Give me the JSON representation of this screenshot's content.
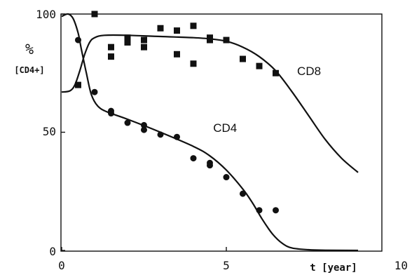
{
  "chart_data": {
    "type": "scatter",
    "xlim": [
      0,
      10
    ],
    "ylim": [
      0,
      100
    ],
    "x_ticks": [
      "0",
      "5",
      "10"
    ],
    "y_ticks": [
      "0",
      "50",
      "100"
    ],
    "ylabel_symbol": "%",
    "ylabel_text": "[CD4+]",
    "xlabel": "t [year]",
    "grid": false,
    "series": [
      {
        "name": "CD8",
        "marker": "square",
        "points": [
          {
            "x": 0.5,
            "y": 70
          },
          {
            "x": 1.0,
            "y": 100
          },
          {
            "x": 1.5,
            "y": 86
          },
          {
            "x": 1.5,
            "y": 82
          },
          {
            "x": 2.0,
            "y": 90
          },
          {
            "x": 2.0,
            "y": 88
          },
          {
            "x": 2.5,
            "y": 89
          },
          {
            "x": 2.5,
            "y": 86
          },
          {
            "x": 3.0,
            "y": 94
          },
          {
            "x": 3.5,
            "y": 93
          },
          {
            "x": 3.5,
            "y": 83
          },
          {
            "x": 4.0,
            "y": 95
          },
          {
            "x": 4.0,
            "y": 79
          },
          {
            "x": 4.5,
            "y": 90
          },
          {
            "x": 4.5,
            "y": 89
          },
          {
            "x": 5.0,
            "y": 89
          },
          {
            "x": 5.5,
            "y": 81
          },
          {
            "x": 6.0,
            "y": 78
          },
          {
            "x": 6.5,
            "y": 75
          }
        ],
        "curve": [
          [
            0,
            67
          ],
          [
            0.25,
            67.5
          ],
          [
            0.4,
            70
          ],
          [
            0.55,
            76
          ],
          [
            0.7,
            83
          ],
          [
            0.85,
            88
          ],
          [
            1.0,
            90
          ],
          [
            1.3,
            91
          ],
          [
            2,
            91
          ],
          [
            3,
            90.5
          ],
          [
            4,
            90
          ],
          [
            4.5,
            89.5
          ],
          [
            5,
            88.5
          ],
          [
            5.5,
            86
          ],
          [
            6,
            82
          ],
          [
            6.5,
            76
          ],
          [
            7,
            67
          ],
          [
            7.5,
            57
          ],
          [
            8,
            47
          ],
          [
            8.5,
            39
          ],
          [
            9,
            33
          ]
        ]
      },
      {
        "name": "CD4",
        "marker": "circle",
        "points": [
          {
            "x": 0.5,
            "y": 89
          },
          {
            "x": 1.0,
            "y": 67
          },
          {
            "x": 1.5,
            "y": 59
          },
          {
            "x": 1.5,
            "y": 58
          },
          {
            "x": 2.0,
            "y": 54
          },
          {
            "x": 2.5,
            "y": 53
          },
          {
            "x": 2.5,
            "y": 51
          },
          {
            "x": 3.0,
            "y": 49
          },
          {
            "x": 3.5,
            "y": 48
          },
          {
            "x": 4.0,
            "y": 39
          },
          {
            "x": 4.5,
            "y": 37
          },
          {
            "x": 4.5,
            "y": 36
          },
          {
            "x": 5.0,
            "y": 31
          },
          {
            "x": 5.5,
            "y": 24
          },
          {
            "x": 6.0,
            "y": 17
          },
          {
            "x": 6.5,
            "y": 17
          }
        ],
        "curve": [
          [
            0,
            99
          ],
          [
            0.2,
            100
          ],
          [
            0.35,
            98
          ],
          [
            0.5,
            92
          ],
          [
            0.6,
            85
          ],
          [
            0.75,
            75
          ],
          [
            0.9,
            66
          ],
          [
            1.1,
            61
          ],
          [
            1.4,
            58.5
          ],
          [
            2,
            55.5
          ],
          [
            3,
            50
          ],
          [
            4,
            44
          ],
          [
            4.5,
            40
          ],
          [
            5,
            34
          ],
          [
            5.5,
            26
          ],
          [
            5.8,
            20
          ],
          [
            6.1,
            13
          ],
          [
            6.4,
            7
          ],
          [
            6.7,
            3
          ],
          [
            7,
            1
          ],
          [
            7.5,
            0.3
          ],
          [
            8,
            0.1
          ],
          [
            9,
            0
          ]
        ]
      }
    ],
    "annotations": [
      {
        "text": "CD8",
        "x": 7.15,
        "y": 76
      },
      {
        "text": "CD4",
        "x": 4.6,
        "y": 52
      }
    ]
  }
}
